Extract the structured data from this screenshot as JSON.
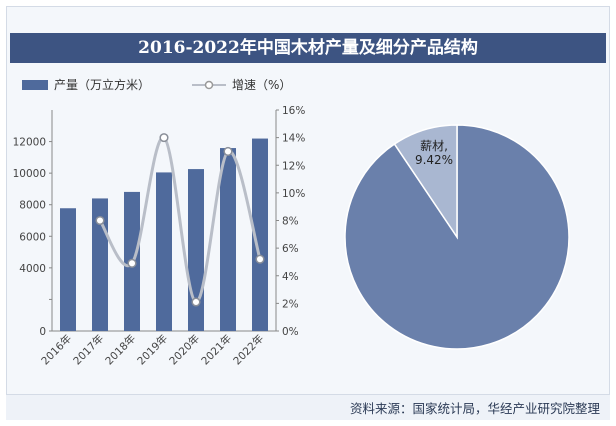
{
  "title": "2016-2022年中国木材产量及细分产品结构",
  "source": "资料来源：国家统计局，华经产业研究院整理",
  "colors": {
    "bar": "#4f6a9c",
    "line": "#b9bec8",
    "title_bg": "#3d5482",
    "pie_main": "#6a80ab",
    "pie_slice": "#a9b7d1"
  },
  "chart_data": [
    {
      "type": "bar",
      "categories": [
        "2016年",
        "2017年",
        "2018年",
        "2019年",
        "2020年",
        "2021年",
        "2022年"
      ],
      "series": [
        {
          "name": "产量（万立方米）",
          "type": "bar",
          "axis": "left",
          "values": [
            7776,
            8398,
            8811,
            10046,
            10257,
            11589,
            12191
          ]
        },
        {
          "name": "增速（%）",
          "type": "line",
          "axis": "right",
          "values": [
            null,
            8.0,
            4.9,
            14.0,
            2.1,
            13.0,
            5.2
          ]
        }
      ],
      "ylim_left": [
        0,
        14000
      ],
      "yticks_left": [
        0,
        2000,
        4000,
        6000,
        8000,
        10000,
        12000
      ],
      "ytick_labels_left": [
        "0",
        "",
        "4000",
        "6000",
        "8000",
        "10000",
        "12000"
      ],
      "ylim_right": [
        0,
        16
      ],
      "yticks_right": [
        0,
        2,
        4,
        6,
        8,
        10,
        12,
        14,
        16
      ],
      "ytick_labels_right": [
        "0%",
        "2%",
        "4%",
        "6%",
        "8%",
        "10%",
        "12%",
        "14%",
        "16%"
      ],
      "legend": "top-left",
      "grid": false
    },
    {
      "type": "pie",
      "slices": [
        {
          "label": "薪材",
          "value": 9.42,
          "display": "薪材,\n9.42%"
        },
        {
          "label": "",
          "value": 90.58,
          "display": ""
        }
      ]
    }
  ]
}
